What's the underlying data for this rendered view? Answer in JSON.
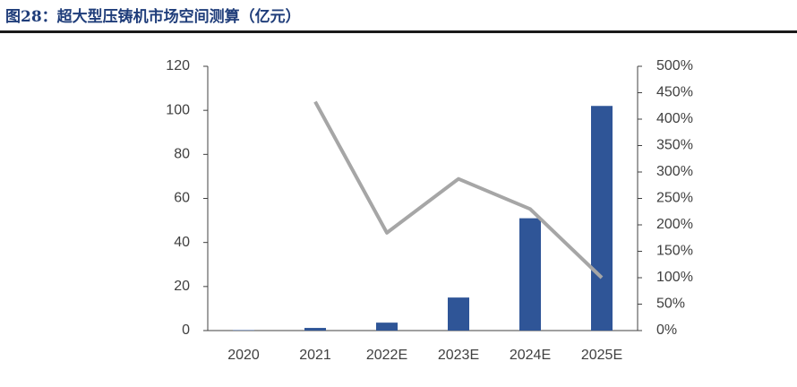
{
  "chart_data": {
    "type": "bar",
    "title": "图28：超大型压铸机市场空间测算（亿元）",
    "categories": [
      "2020",
      "2021",
      "2022E",
      "2023E",
      "2024E",
      "2025E"
    ],
    "series": [
      {
        "type": "bar",
        "color": "#2f5597",
        "values": [
          0.2,
          1.2,
          3.6,
          15,
          51,
          102
        ]
      },
      {
        "type": "line",
        "color": "#a6a6a6",
        "axis": "y2",
        "values": [
          null,
          433,
          185,
          287,
          230,
          100
        ]
      }
    ],
    "ylim": [
      0,
      120
    ],
    "yticks": [
      0,
      20,
      40,
      60,
      80,
      100,
      120
    ],
    "y2lim": [
      0,
      500
    ],
    "y2ticks": [
      {
        "value": 0,
        "label": "0%"
      },
      {
        "value": 50,
        "label": "50%"
      },
      {
        "value": 100,
        "label": "100%"
      },
      {
        "value": 150,
        "label": "150%"
      },
      {
        "value": 200,
        "label": "200%"
      },
      {
        "value": 250,
        "label": "250%"
      },
      {
        "value": 300,
        "label": "300%"
      },
      {
        "value": 350,
        "label": "350%"
      },
      {
        "value": 400,
        "label": "400%"
      },
      {
        "value": 450,
        "label": "450%"
      },
      {
        "value": 500,
        "label": "500%"
      }
    ],
    "grid": false
  }
}
